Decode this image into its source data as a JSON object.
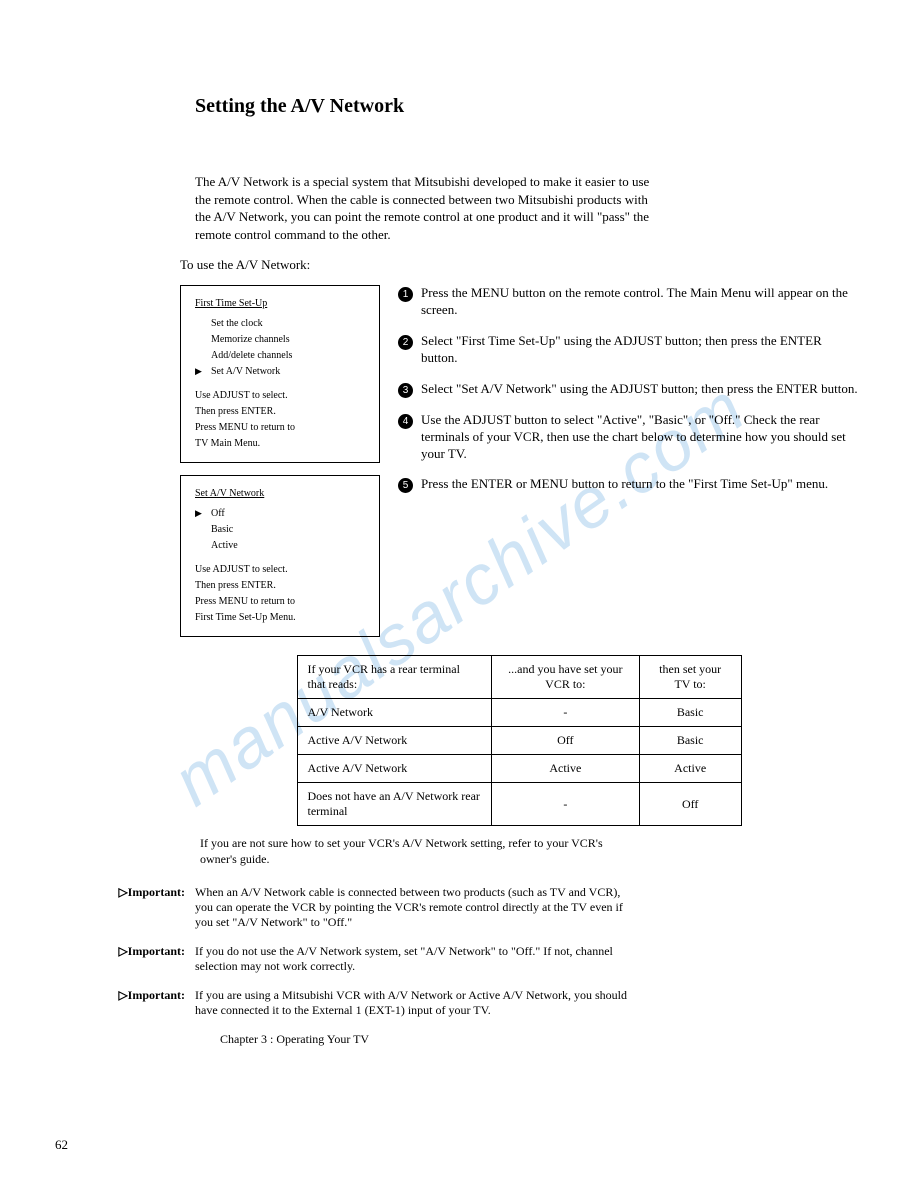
{
  "watermark": "manualsarchive.com",
  "title": "Setting the A/V Network",
  "intro": "The A/V Network is a special system that Mitsubishi developed to make it easier to use the remote control. When the cable is connected between two Mitsubishi products with the A/V Network, you can point the remote control at one product and it will \"pass\" the remote control command to the other.",
  "use_label": "To use the A/V Network:",
  "menu1": {
    "heading": "First Time Set-Up",
    "items": [
      "Set the clock",
      "Memorize channels",
      "Add/delete channels",
      "Set A/V Network"
    ],
    "selected_index": 3,
    "instructions": [
      "Use ADJUST to select.",
      "Then press ENTER.",
      "Press MENU to return to",
      "TV Main Menu."
    ]
  },
  "menu2": {
    "heading": "Set A/V Network",
    "items": [
      "Off",
      "Basic",
      "Active"
    ],
    "selected_index": 0,
    "instructions": [
      "Use ADJUST to select.",
      "Then press ENTER.",
      "Press MENU to return to",
      "First Time Set-Up Menu."
    ]
  },
  "steps": [
    "Press the MENU button on the remote control. The Main Menu will appear on the screen.",
    "Select \"First Time Set-Up\" using the ADJUST button; then press the ENTER button.",
    "Select \"Set A/V Network\" using the ADJUST button; then press the ENTER button.",
    "Use the ADJUST button to select \"Active\", \"Basic\", or \"Off.\" Check the rear terminals of your VCR, then use the chart below to determine how you should set your TV.",
    "Press the ENTER or MENU button to return to the \"First Time Set-Up\" menu."
  ],
  "table": {
    "headers": [
      "If your VCR has a rear terminal that reads:",
      "...and you have set your VCR to:",
      "then set your TV to:"
    ],
    "rows": [
      [
        "A/V Network",
        "-",
        "Basic"
      ],
      [
        "Active A/V Network",
        "Off",
        "Basic"
      ],
      [
        "Active A/V Network",
        "Active",
        "Active"
      ],
      [
        "Does not have an A/V Network rear terminal",
        "-",
        "Off"
      ]
    ]
  },
  "note": "If you are not sure how to set your VCR's A/V Network setting, refer to your VCR's owner's guide.",
  "important_label": "▷Important:",
  "important": [
    "When an A/V Network cable is connected between two products (such as TV and VCR), you can operate the VCR by pointing the VCR's remote control directly at the TV even if you set \"A/V Network\" to \"Off.\"",
    "If you do not use the A/V Network system, set \"A/V Network\" to \"Off.\" If not, channel selection may not work correctly.",
    "If you are using a Mitsubishi VCR with A/V Network or Active A/V Network, you should have connected it to the External 1 (EXT-1) input of your TV."
  ],
  "chapter_footer": "Chapter 3 : Operating Your TV",
  "page_number": "62"
}
